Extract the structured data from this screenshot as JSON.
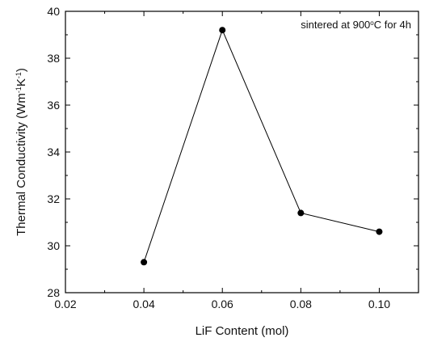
{
  "chart_data": {
    "type": "scatter",
    "mode": "line+markers",
    "xlabel": "LiF Content (mol)",
    "ylabel_main": "Thermal Conductivity (Wm",
    "ylabel_sup1": "-1",
    "ylabel_mid": "K",
    "ylabel_sup2": "-1",
    "ylabel_end": ")",
    "annotation_pre": "sintered at 900",
    "annotation_sup": "o",
    "annotation_post": "C for 4h",
    "xlim": [
      0.02,
      0.11
    ],
    "ylim": [
      28,
      40
    ],
    "x_ticks": [
      0.02,
      0.04,
      0.06,
      0.08,
      0.1
    ],
    "x_tick_labels": [
      "0.02",
      "0.04",
      "0.06",
      "0.08",
      "0.10"
    ],
    "y_ticks": [
      28,
      30,
      32,
      34,
      36,
      38,
      40
    ],
    "y_tick_labels": [
      "28",
      "30",
      "32",
      "34",
      "36",
      "38",
      "40"
    ],
    "series": [
      {
        "x": [
          0.04,
          0.06,
          0.08,
          0.1
        ],
        "y": [
          29.3,
          39.2,
          31.4,
          30.6
        ]
      }
    ],
    "grid": false,
    "colors": {
      "line": "#000000",
      "marker": "#000000",
      "axis": "#000000"
    }
  }
}
